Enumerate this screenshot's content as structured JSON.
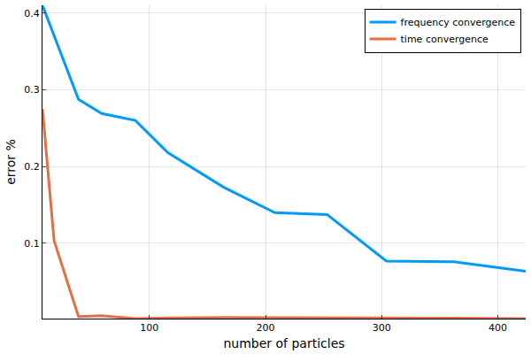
{
  "chart_data": {
    "type": "line",
    "x_label": "number of particles",
    "y_label": "error %",
    "series": [
      {
        "name": "frequency convergence",
        "color": "#009AFA",
        "x": [
          8,
          39,
          59,
          88,
          116,
          164,
          208,
          253,
          304,
          362,
          424
        ],
        "values": [
          0.41,
          0.2875,
          0.269,
          0.26,
          0.218,
          0.173,
          0.14,
          0.1375,
          0.077,
          0.076,
          0.0636
        ]
      },
      {
        "name": "time convergence",
        "color": "#E36F47",
        "x": [
          8,
          18,
          39,
          59,
          88,
          116,
          164,
          208,
          253,
          304,
          362,
          424
        ],
        "values": [
          0.275,
          0.1034,
          0.0045,
          0.0057,
          0.002,
          0.003,
          0.0035,
          0.0035,
          0.0035,
          0.0028,
          0.0027,
          0.002
        ]
      }
    ],
    "xlim": [
      8,
      424
    ],
    "xticks": [
      100,
      200,
      300,
      400
    ],
    "ylim": [
      0.002,
      0.41
    ],
    "yticks": [
      0.1,
      0.2,
      0.3,
      0.4
    ],
    "grid": true,
    "legend": "top right"
  }
}
